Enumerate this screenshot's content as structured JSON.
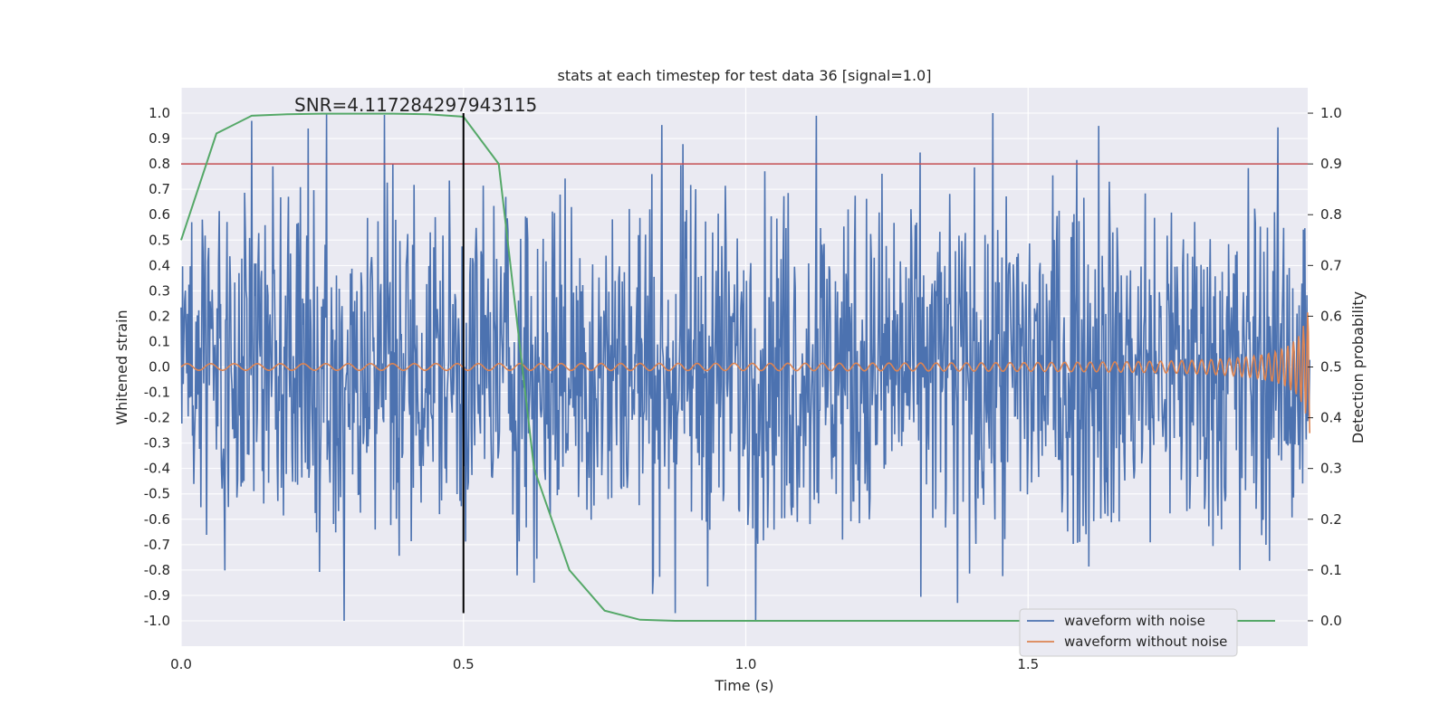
{
  "chart_data": {
    "type": "line",
    "title": "stats at each timestep for test data 36 [signal=1.0]",
    "annotation": "SNR=4.117284297943115",
    "xlabel": "Time (s)",
    "ylabel_left": "Whitened strain",
    "ylabel_right": "Detection probability",
    "xlim": [
      0.0,
      2.0
    ],
    "ylim_left": [
      -1.1,
      1.1
    ],
    "ylim_right": [
      -0.05,
      1.05
    ],
    "x_ticks": [
      "0.0",
      "0.5",
      "1.0",
      "1.5"
    ],
    "y_ticks_left": [
      "1.0",
      "0.9",
      "0.8",
      "0.7",
      "0.6",
      "0.5",
      "0.4",
      "0.3",
      "0.2",
      "0.1",
      "0.0",
      "-0.1",
      "-0.2",
      "-0.3",
      "-0.4",
      "-0.5",
      "-0.6",
      "-0.7",
      "-0.8",
      "-0.9",
      "-1.0"
    ],
    "y_ticks_right": [
      "1.0",
      "0.9",
      "0.8",
      "0.7",
      "0.6",
      "0.5",
      "0.4",
      "0.3",
      "0.2",
      "0.1",
      "0.0"
    ],
    "threshold_line": {
      "y_right": 0.9,
      "color": "#c44e52"
    },
    "marker_line": {
      "x": 0.5,
      "y_left_from": -0.97,
      "y_left_to": 1.0,
      "color": "#000000"
    },
    "detection_probability": {
      "name": "detection probability",
      "color": "#55a868",
      "x": [
        0.0,
        0.0625,
        0.125,
        0.1875,
        0.25,
        0.3125,
        0.375,
        0.4375,
        0.5,
        0.5625,
        0.625,
        0.6875,
        0.75,
        0.8125,
        0.875,
        0.9375,
        1.0,
        1.25,
        1.5,
        1.75,
        1.9375
      ],
      "values": [
        0.75,
        0.96,
        0.995,
        0.998,
        0.999,
        0.999,
        0.999,
        0.998,
        0.993,
        0.9,
        0.3,
        0.1,
        0.02,
        0.002,
        0.0,
        0.0,
        0.0,
        0.0,
        0.0,
        0.0,
        0.0
      ]
    },
    "series": [
      {
        "name": "waveform with noise",
        "color": "#4c72b0",
        "amplitude_envelope": 0.35,
        "peak_values": [
          0.97,
          0.8,
          -0.85,
          -0.97,
          0.99,
          -0.93,
          0.95,
          -0.8
        ]
      },
      {
        "name": "waveform without noise",
        "color": "#dd8452",
        "base_amplitude": 0.012,
        "final_amplitude": 0.28
      }
    ],
    "legend": [
      "waveform with noise",
      "waveform without noise"
    ],
    "legend_position": "lower right",
    "grid": true,
    "background": "#eaeaf2"
  }
}
